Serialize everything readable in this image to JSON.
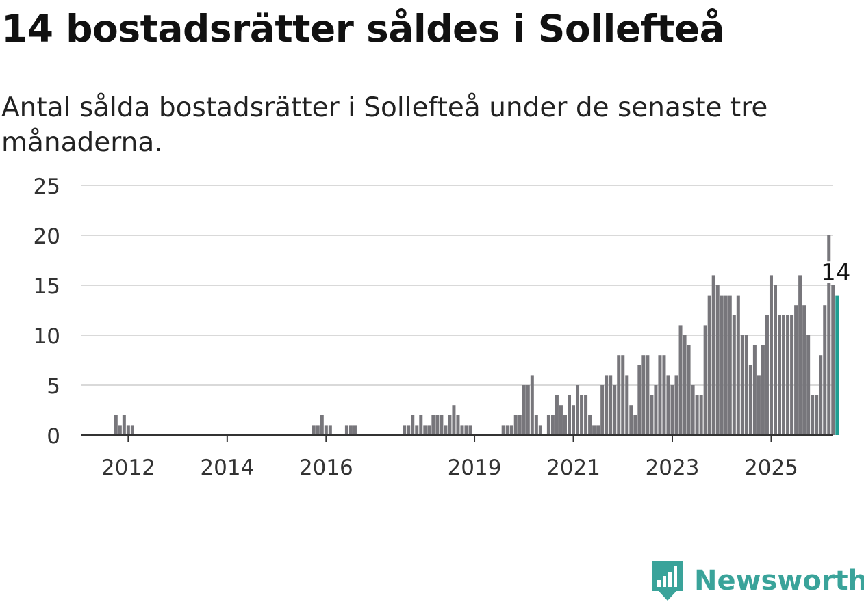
{
  "title": "14 bostadsrätter såldes i Sollefteå",
  "subtitle": "Antal sålda bostadsrätter i Sollefteå under de senaste tre månaderna.",
  "brand": {
    "name": "Newsworthy",
    "color": "#3aa39a",
    "icon": "newsworthy-logo-icon"
  },
  "colors": {
    "bar": "#77767b",
    "highlight": "#1f9e92",
    "grid": "#d9d9d9",
    "axis": "#333333"
  },
  "chart_data": {
    "type": "bar",
    "title": "14 bostadsrätter såldes i Sollefteå",
    "subtitle": "Antal sålda bostadsrätter i Sollefteå under de senaste tre månaderna.",
    "xlabel": "",
    "ylabel": "",
    "ylim": [
      0,
      25
    ],
    "yticks": [
      0,
      5,
      10,
      15,
      20,
      25
    ],
    "xticks": [
      "2012",
      "2014",
      "2016",
      "2019",
      "2021",
      "2023",
      "2025"
    ],
    "grid": true,
    "series_start": "2011-10",
    "frequency": "monthly",
    "values": [
      2,
      1,
      2,
      1,
      1,
      0,
      0,
      0,
      0,
      0,
      0,
      0,
      0,
      0,
      0,
      0,
      0,
      0,
      0,
      0,
      0,
      0,
      0,
      0,
      0,
      0,
      0,
      0,
      0,
      0,
      0,
      0,
      0,
      0,
      0,
      0,
      0,
      0,
      0,
      0,
      0,
      0,
      0,
      0,
      0,
      0,
      0,
      0,
      1,
      1,
      2,
      1,
      1,
      0,
      0,
      0,
      1,
      1,
      1,
      0,
      0,
      0,
      0,
      0,
      0,
      0,
      0,
      0,
      0,
      0,
      1,
      1,
      2,
      1,
      2,
      1,
      1,
      2,
      2,
      2,
      1,
      2,
      3,
      2,
      1,
      1,
      1,
      0,
      0,
      0,
      0,
      0,
      0,
      0,
      1,
      1,
      1,
      2,
      2,
      5,
      5,
      6,
      2,
      1,
      0,
      2,
      2,
      4,
      3,
      2,
      4,
      3,
      5,
      4,
      4,
      2,
      1,
      1,
      5,
      6,
      6,
      5,
      8,
      8,
      6,
      3,
      2,
      7,
      8,
      8,
      4,
      5,
      8,
      8,
      6,
      5,
      6,
      11,
      10,
      9,
      5,
      4,
      4,
      11,
      14,
      16,
      15,
      14,
      14,
      14,
      12,
      14,
      10,
      10,
      7,
      9,
      6,
      9,
      12,
      16,
      15,
      12,
      12,
      12,
      12,
      13,
      16,
      13,
      10,
      4,
      4,
      8,
      13,
      20,
      15,
      14
    ],
    "highlight": {
      "label": "14",
      "value": 14,
      "color": "#1f9e92"
    }
  }
}
